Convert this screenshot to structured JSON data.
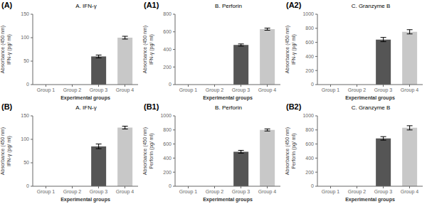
{
  "chart_data": [
    {
      "type": "bar",
      "annotation": "(A)",
      "title": "A. IFN-γ",
      "ylabel": "Absorbance (450 nm)\nIFN-γ (pg/ ml)",
      "xlabel": "Experimental groups",
      "categories": [
        "Group 1",
        "Group 2",
        "Group 3",
        "Group 4"
      ],
      "values": [
        0,
        0,
        60,
        100
      ],
      "errors": [
        0,
        0,
        3,
        3
      ],
      "colors": [
        "none",
        "none",
        "#555555",
        "#c8c8c8"
      ],
      "ylim": [
        0,
        150
      ],
      "yticks": [
        0,
        50,
        100,
        150
      ],
      "grid": false
    },
    {
      "type": "bar",
      "annotation": "(A1)",
      "title": "B. Perforin",
      "ylabel": "Absorbance (450 nm)\nIFN-γ (pg/ ml)",
      "xlabel": "Experimental groups",
      "categories": [
        "Group 1",
        "Group 2",
        "Group 3",
        "Group 4"
      ],
      "values": [
        0,
        0,
        450,
        630
      ],
      "errors": [
        0,
        0,
        12,
        12
      ],
      "colors": [
        "none",
        "none",
        "#555555",
        "#c8c8c8"
      ],
      "ylim": [
        0,
        800
      ],
      "yticks": [
        0,
        200,
        400,
        600,
        800
      ],
      "grid": false
    },
    {
      "type": "bar",
      "annotation": "(A2)",
      "title": "C. Granzyme B",
      "ylabel": "Absorbance (450 nm)\nIFN-γ (pg/ ml)",
      "xlabel": "Experimental groups",
      "categories": [
        "Group 1",
        "Group 2",
        "Group 3",
        "Group 4"
      ],
      "values": [
        0,
        0,
        640,
        750
      ],
      "errors": [
        0,
        0,
        30,
        30
      ],
      "colors": [
        "none",
        "none",
        "#555555",
        "#c8c8c8"
      ],
      "ylim": [
        0,
        1000
      ],
      "yticks": [
        0,
        200,
        400,
        600,
        800,
        1000
      ],
      "grid": false
    },
    {
      "type": "bar",
      "annotation": "(B)",
      "title": "A. IFN-γ",
      "ylabel": "Absorbance (450 nm)\nIFN-γ (pg/ ml)",
      "xlabel": "Experimental groups",
      "categories": [
        "Group 1",
        "Group 2",
        "Group 3",
        "Group 4"
      ],
      "values": [
        0,
        0,
        85,
        125
      ],
      "errors": [
        0,
        0,
        5,
        3
      ],
      "colors": [
        "none",
        "none",
        "#555555",
        "#c8c8c8"
      ],
      "ylim": [
        0,
        150
      ],
      "yticks": [
        0,
        50,
        100,
        150
      ],
      "grid": false
    },
    {
      "type": "bar",
      "annotation": "(B1)",
      "title": "B. Perforin",
      "ylabel": "Absorbance (450 nm)\nPerforin (pg/ ml)",
      "xlabel": "Experimental groups",
      "categories": [
        "Group 1",
        "Group 2",
        "Group 3",
        "Group 4"
      ],
      "values": [
        0,
        0,
        490,
        800
      ],
      "errors": [
        0,
        0,
        20,
        15
      ],
      "colors": [
        "none",
        "none",
        "#555555",
        "#c8c8c8"
      ],
      "ylim": [
        0,
        1000
      ],
      "yticks": [
        0,
        200,
        400,
        600,
        800,
        1000
      ],
      "grid": false
    },
    {
      "type": "bar",
      "annotation": "(B2)",
      "title": "C. Granzyme B",
      "ylabel": "Absorbance (450 nm)\nPerforin (pg/ ml)",
      "xlabel": "Experimental groups",
      "categories": [
        "Group 1",
        "Group 2",
        "Group 3",
        "Group 4"
      ],
      "values": [
        0,
        0,
        680,
        830
      ],
      "errors": [
        0,
        0,
        25,
        30
      ],
      "colors": [
        "none",
        "none",
        "#555555",
        "#c8c8c8"
      ],
      "ylim": [
        0,
        1000
      ],
      "yticks": [
        0,
        200,
        400,
        600,
        800,
        1000
      ],
      "grid": false
    }
  ]
}
